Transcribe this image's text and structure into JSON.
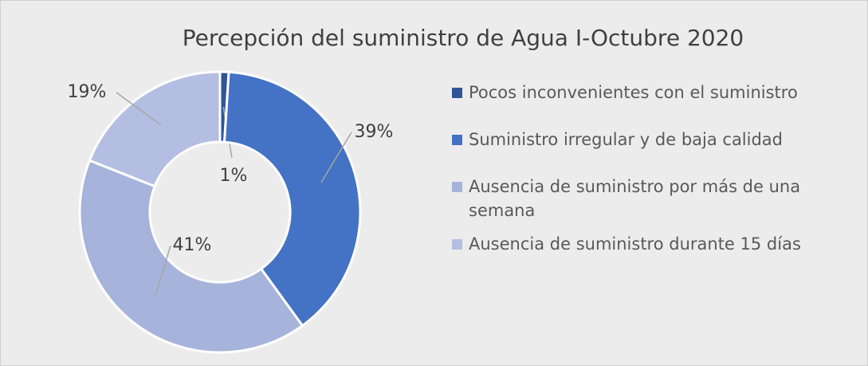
{
  "chart_data": {
    "type": "donut",
    "title": "Percepción del suministro de Agua I-Octubre 2020",
    "categories": [
      "Pocos inconvenientes con el suministro",
      "Suministro irregular y de baja calidad",
      "Ausencia de suministro por más de una semana",
      "Ausencia de suministro durante 15 días"
    ],
    "values": [
      1,
      39,
      41,
      19
    ],
    "value_labels": [
      "1%",
      "39%",
      "41%",
      "19%"
    ],
    "colors": [
      "#2f5597",
      "#4472c4",
      "#a6b3db",
      "#b4bee2"
    ],
    "legend": "right"
  }
}
